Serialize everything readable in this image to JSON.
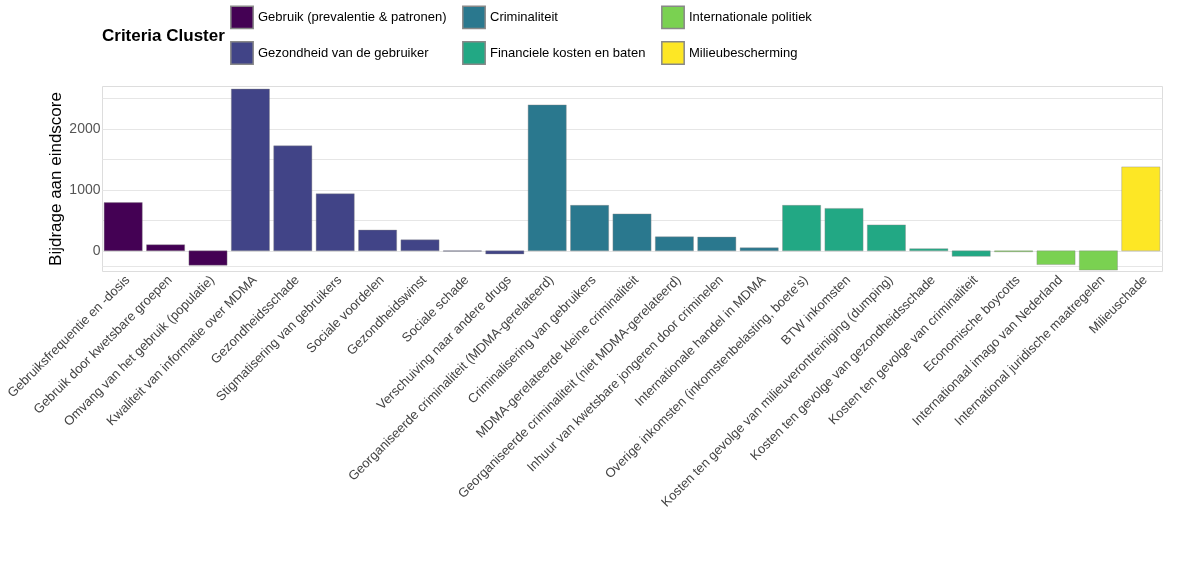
{
  "chart_data": {
    "type": "bar",
    "ylabel": "Bijdrage aan eindscore",
    "legend_title": "Criteria Cluster",
    "legend": "top",
    "grid": "y",
    "categories": [
      "Gebruiksfrequentie en -dosis",
      "Gebruik door kwetsbare groepen",
      "Omvang van het gebruik (populatie)",
      "Kwaliteit van informatie over MDMA",
      "Gezondheidsschade",
      "Stigmatisering van gebruikers",
      "Sociale voordelen",
      "Gezondheidswinst",
      "Sociale schade",
      "Verschuiving naar andere drugs",
      "Georganiseerde criminaliteit (MDMA-gerelateerd)",
      "Criminalisering van gebruikers",
      "MDMA-gerelateerde kleine criminaliteit",
      "Georganiseerde criminaliteit (niet MDMA-gerelateerd)",
      "Inhuur van kwetsbare jongeren door criminelen",
      "Internationale handel in MDMA",
      "Overige inkomsten (inkomstenbelasting, boete's)",
      "BTW inkomsten",
      "Kosten ten gevolge van milieuverontreiniging (dumping)",
      "Kosten ten gevolge van gezondheidsschade",
      "Kosten ten gevolge van criminaliteit",
      "Economische boycotts",
      "Internationaal imago van Nederland",
      "International juridische maatregelen",
      "Milieuschade"
    ],
    "series": [
      {
        "name": "Gebruik (prevalentie & patronen)",
        "color": "#440154",
        "values": [
          790,
          100,
          -235,
          null,
          null,
          null,
          null,
          null,
          null,
          null,
          null,
          null,
          null,
          null,
          null,
          null,
          null,
          null,
          null,
          null,
          null,
          null,
          null,
          null,
          null
        ]
      },
      {
        "name": "Gezondheid van de gebruiker",
        "color": "#414487",
        "values": [
          null,
          null,
          null,
          2650,
          1720,
          935,
          340,
          180,
          -5,
          -50,
          null,
          null,
          null,
          null,
          null,
          null,
          null,
          null,
          null,
          null,
          null,
          null,
          null,
          null,
          null
        ]
      },
      {
        "name": "Criminaliteit",
        "color": "#2a788e",
        "values": [
          null,
          null,
          null,
          null,
          null,
          null,
          null,
          null,
          null,
          null,
          2390,
          745,
          605,
          230,
          225,
          50,
          null,
          null,
          null,
          null,
          null,
          null,
          null,
          null,
          null
        ]
      },
      {
        "name": "Financiele kosten en baten",
        "color": "#22a884",
        "values": [
          null,
          null,
          null,
          null,
          null,
          null,
          null,
          null,
          null,
          null,
          null,
          null,
          null,
          null,
          null,
          null,
          745,
          695,
          425,
          35,
          -90,
          null,
          null,
          null,
          null
        ]
      },
      {
        "name": "Internationale politiek",
        "color": "#7ad151",
        "values": [
          null,
          null,
          null,
          null,
          null,
          null,
          null,
          null,
          null,
          null,
          null,
          null,
          null,
          null,
          null,
          null,
          null,
          null,
          null,
          null,
          null,
          -15,
          -225,
          -315,
          null
        ]
      },
      {
        "name": "Milieubescherming",
        "color": "#fde725",
        "values": [
          null,
          null,
          null,
          null,
          null,
          null,
          null,
          null,
          null,
          null,
          null,
          null,
          null,
          null,
          null,
          null,
          null,
          null,
          null,
          null,
          null,
          null,
          null,
          null,
          1375
        ]
      }
    ],
    "ylim": [
      -330,
      2700
    ],
    "yticks": [
      {
        "value": -250,
        "label": null
      },
      0,
      {
        "value": 500,
        "label": null
      },
      1000,
      {
        "value": 1500,
        "label": null
      },
      2000,
      {
        "value": 2500,
        "label": null
      }
    ]
  }
}
